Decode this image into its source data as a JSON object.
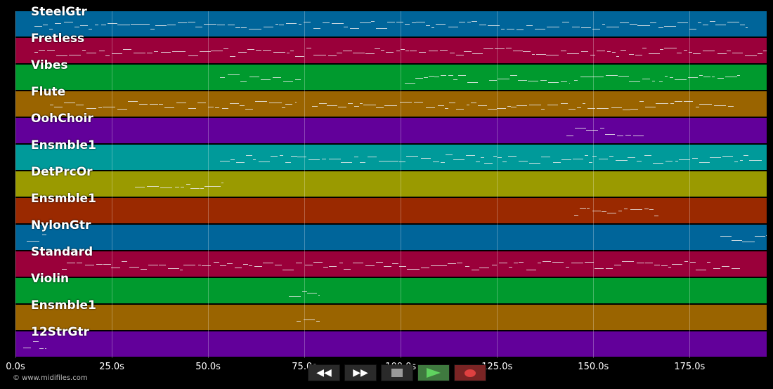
{
  "tracks": [
    {
      "name": "SteelGtr",
      "color": "#00659a"
    },
    {
      "name": "Fretless",
      "color": "#9a003a"
    },
    {
      "name": "Vibes",
      "color": "#009a2e"
    },
    {
      "name": "Flute",
      "color": "#9a6400"
    },
    {
      "name": "OohChoir",
      "color": "#62009a"
    },
    {
      "name": "Ensmble1",
      "color": "#009a9a"
    },
    {
      "name": "DetPrcOr",
      "color": "#9a9a00"
    },
    {
      "name": "Ensmble1",
      "color": "#9a2900"
    },
    {
      "name": "NylonGtr",
      "color": "#00659a"
    },
    {
      "name": "Standard",
      "color": "#9a003a"
    },
    {
      "name": "Violin",
      "color": "#009a2e"
    },
    {
      "name": "Ensmble1",
      "color": "#9a6400"
    },
    {
      "name": "12StrGtr",
      "color": "#62009a"
    }
  ],
  "timeline": {
    "max_seconds": 195,
    "ticks": [
      "0.0s",
      "25.0s",
      "50.0s",
      "75.0s",
      "100.0s",
      "125.0s",
      "150.0s",
      "175.0s"
    ],
    "tick_values": [
      0,
      25,
      50,
      75,
      100,
      125,
      150,
      175
    ]
  },
  "transport": {
    "rewind_icon": "rewind-icon",
    "forward_icon": "fast-forward-icon",
    "stop_icon": "stop-icon",
    "play_icon": "play-icon",
    "record_icon": "record-icon"
  },
  "credit": "© www.midifiles.com",
  "note_segments": [
    {
      "track": 0,
      "spans": [
        [
          5,
          190
        ]
      ]
    },
    {
      "track": 1,
      "spans": [
        [
          5,
          195
        ]
      ]
    },
    {
      "track": 2,
      "spans": [
        [
          53,
          74
        ],
        [
          101,
          120
        ],
        [
          123,
          144
        ],
        [
          145,
          166
        ],
        [
          167,
          188
        ]
      ]
    },
    {
      "track": 3,
      "spans": [
        [
          9,
          73
        ],
        [
          77,
          187
        ]
      ]
    },
    {
      "track": 4,
      "spans": [
        [
          143,
          163
        ]
      ]
    },
    {
      "track": 5,
      "spans": [
        [
          53,
          194
        ]
      ]
    },
    {
      "track": 6,
      "spans": [
        [
          31,
          54
        ]
      ]
    },
    {
      "track": 7,
      "spans": [
        [
          145,
          167
        ]
      ]
    },
    {
      "track": 8,
      "spans": [
        [
          3,
          8
        ],
        [
          183,
          195
        ]
      ]
    },
    {
      "track": 9,
      "spans": [
        [
          12,
          188
        ]
      ]
    },
    {
      "track": 10,
      "spans": [
        [
          71,
          79
        ]
      ]
    },
    {
      "track": 11,
      "spans": [
        [
          73,
          79
        ]
      ]
    },
    {
      "track": 12,
      "spans": [
        [
          2,
          8
        ]
      ]
    }
  ]
}
